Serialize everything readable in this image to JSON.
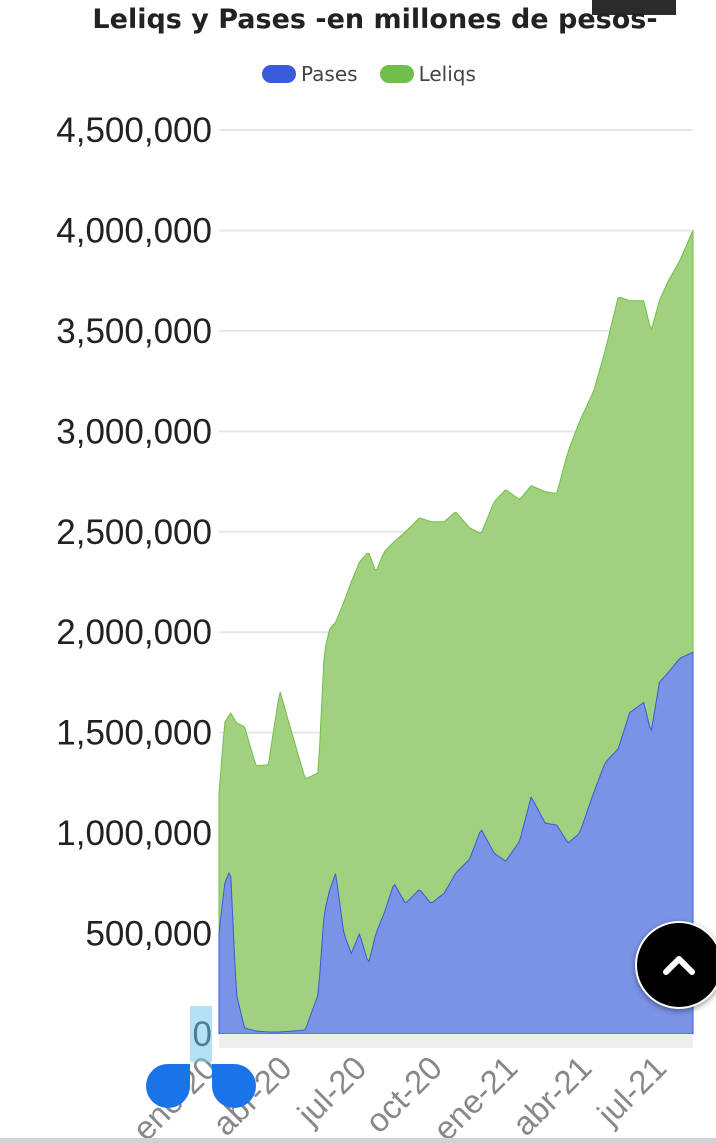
{
  "chart_data": {
    "type": "area",
    "title": "Leliqs y Pases -en millones de pesos-",
    "xlabel": "",
    "ylabel": "",
    "stacked": true,
    "ylim": [
      0,
      4700000
    ],
    "yticks": [
      "0",
      "500,000",
      "1,000,000",
      "1,500,000",
      "2,000,000",
      "2,500,000",
      "3,000,000",
      "3,500,000",
      "4,000,000",
      "4,500,000"
    ],
    "ytick_values": [
      0,
      500000,
      1000000,
      1500000,
      2000000,
      2500000,
      3000000,
      3500000,
      4000000,
      4500000
    ],
    "xticks": [
      "ene-20",
      "abr-20",
      "jul-20",
      "oct-20",
      "ene-21",
      "abr-21",
      "jul-21"
    ],
    "xtick_dates": [
      "2020-01-01",
      "2020-04-01",
      "2020-07-01",
      "2020-10-01",
      "2021-01-01",
      "2021-04-01",
      "2021-07-01"
    ],
    "x_range": [
      "2020-01-01",
      "2021-07-31"
    ],
    "legend_position": "top",
    "grid": true,
    "series": [
      {
        "name": "Pases",
        "color": "#3a5bd9",
        "fill": "#7b93e6",
        "points": [
          [
            "2020-01-01",
            500000
          ],
          [
            "2020-01-08",
            750000
          ],
          [
            "2020-01-15",
            820000
          ],
          [
            "2020-01-22",
            200000
          ],
          [
            "2020-02-01",
            30000
          ],
          [
            "2020-02-15",
            15000
          ],
          [
            "2020-03-01",
            10000
          ],
          [
            "2020-03-15",
            10000
          ],
          [
            "2020-04-01",
            15000
          ],
          [
            "2020-04-15",
            20000
          ],
          [
            "2020-05-01",
            200000
          ],
          [
            "2020-05-08",
            600000
          ],
          [
            "2020-05-15",
            720000
          ],
          [
            "2020-05-22",
            800000
          ],
          [
            "2020-06-01",
            500000
          ],
          [
            "2020-06-10",
            400000
          ],
          [
            "2020-06-20",
            500000
          ],
          [
            "2020-07-01",
            350000
          ],
          [
            "2020-07-10",
            500000
          ],
          [
            "2020-07-20",
            600000
          ],
          [
            "2020-08-01",
            750000
          ],
          [
            "2020-08-15",
            650000
          ],
          [
            "2020-09-01",
            720000
          ],
          [
            "2020-09-15",
            650000
          ],
          [
            "2020-10-01",
            700000
          ],
          [
            "2020-10-15",
            800000
          ],
          [
            "2020-11-01",
            870000
          ],
          [
            "2020-11-15",
            1020000
          ],
          [
            "2020-12-01",
            900000
          ],
          [
            "2020-12-15",
            860000
          ],
          [
            "2021-01-01",
            960000
          ],
          [
            "2021-01-15",
            1180000
          ],
          [
            "2021-02-01",
            1050000
          ],
          [
            "2021-02-15",
            1040000
          ],
          [
            "2021-03-01",
            950000
          ],
          [
            "2021-03-15",
            1000000
          ],
          [
            "2021-04-01",
            1200000
          ],
          [
            "2021-04-15",
            1350000
          ],
          [
            "2021-05-01",
            1420000
          ],
          [
            "2021-05-15",
            1600000
          ],
          [
            "2021-06-01",
            1650000
          ],
          [
            "2021-06-10",
            1500000
          ],
          [
            "2021-06-20",
            1750000
          ],
          [
            "2021-07-01",
            1800000
          ],
          [
            "2021-07-15",
            1870000
          ],
          [
            "2021-07-31",
            1900000
          ]
        ]
      },
      {
        "name": "Leliqs",
        "color": "#6fbf4a",
        "fill": "#a1d17f",
        "points": [
          [
            "2020-01-01",
            700000
          ],
          [
            "2020-01-08",
            800000
          ],
          [
            "2020-01-15",
            780000
          ],
          [
            "2020-01-22",
            1350000
          ],
          [
            "2020-02-01",
            1500000
          ],
          [
            "2020-02-15",
            1320000
          ],
          [
            "2020-03-01",
            1330000
          ],
          [
            "2020-03-15",
            1700000
          ],
          [
            "2020-04-01",
            1450000
          ],
          [
            "2020-04-15",
            1250000
          ],
          [
            "2020-05-01",
            1100000
          ],
          [
            "2020-05-08",
            1300000
          ],
          [
            "2020-05-15",
            1300000
          ],
          [
            "2020-05-22",
            1250000
          ],
          [
            "2020-06-01",
            1650000
          ],
          [
            "2020-06-10",
            1850000
          ],
          [
            "2020-06-20",
            1850000
          ],
          [
            "2020-07-01",
            2050000
          ],
          [
            "2020-07-10",
            1800000
          ],
          [
            "2020-07-20",
            1800000
          ],
          [
            "2020-08-01",
            1700000
          ],
          [
            "2020-08-15",
            1850000
          ],
          [
            "2020-09-01",
            1850000
          ],
          [
            "2020-09-15",
            1900000
          ],
          [
            "2020-10-01",
            1850000
          ],
          [
            "2020-10-15",
            1800000
          ],
          [
            "2020-11-01",
            1650000
          ],
          [
            "2020-11-15",
            1470000
          ],
          [
            "2020-12-01",
            1750000
          ],
          [
            "2020-12-15",
            1850000
          ],
          [
            "2021-01-01",
            1700000
          ],
          [
            "2021-01-15",
            1550000
          ],
          [
            "2021-02-01",
            1650000
          ],
          [
            "2021-02-15",
            1650000
          ],
          [
            "2021-03-01",
            1950000
          ],
          [
            "2021-03-15",
            2050000
          ],
          [
            "2021-04-01",
            2000000
          ],
          [
            "2021-04-15",
            2050000
          ],
          [
            "2021-05-01",
            2250000
          ],
          [
            "2021-05-15",
            2050000
          ],
          [
            "2021-06-01",
            2000000
          ],
          [
            "2021-06-10",
            2000000
          ],
          [
            "2021-06-20",
            1900000
          ],
          [
            "2021-07-01",
            1950000
          ],
          [
            "2021-07-15",
            1980000
          ],
          [
            "2021-07-31",
            2100000
          ]
        ]
      }
    ]
  },
  "ui": {
    "scroll_top_icon": "chevron-up-icon"
  }
}
